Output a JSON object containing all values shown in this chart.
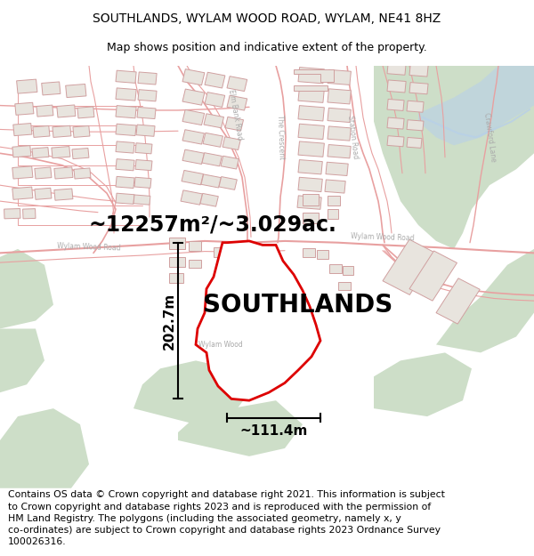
{
  "title_line1": "SOUTHLANDS, WYLAM WOOD ROAD, WYLAM, NE41 8HZ",
  "title_line2": "Map shows position and indicative extent of the property.",
  "property_label": "SOUTHLANDS",
  "area_label": "~12257m²/~3.029ac.",
  "width_label": "~111.4m",
  "height_label": "202.7m",
  "footer_text": "Contains OS data © Crown copyright and database right 2021. This information is subject to Crown copyright and database rights 2023 and is reproduced with the permission of HM Land Registry. The polygons (including the associated geometry, namely x, y co-ordinates) are subject to Crown copyright and database rights 2023 Ordnance Survey 100026316.",
  "map_bg": "#f5f3f0",
  "road_color": "#e8a0a0",
  "road_fill": "#f5f3f0",
  "building_outline": "#d0a0a0",
  "building_fill": "#e8e4de",
  "green_color": "#cddec8",
  "blue_color": "#b8d0e8",
  "property_fill": "#ffffff",
  "property_edge": "#dd0000",
  "dim_color": "#000000",
  "title_fontsize": 10,
  "subtitle_fontsize": 9,
  "area_fontsize": 17,
  "prop_label_fontsize": 20,
  "dim_fontsize": 11,
  "footer_fontsize": 7.8,
  "road_label_color": "#aaaaaa",
  "road_label_size": 5.5
}
